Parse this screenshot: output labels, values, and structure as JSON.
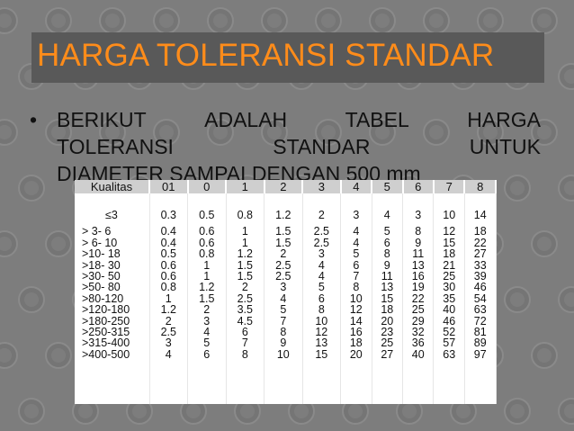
{
  "slide": {
    "title": "HARGA TOLERANSI STANDAR",
    "bullet_symbol": "•",
    "bullet_lines": [
      [
        "BERIKUT",
        "ADALAH",
        "TABEL",
        "HARGA"
      ],
      [
        "TOLERANSI",
        "STANDAR",
        "UNTUK"
      ],
      [
        "DIAMETER SAMPAI DENGAN 500 mm"
      ]
    ]
  },
  "table": {
    "headers": [
      "Kualitas",
      "01",
      "0",
      "1",
      "2",
      "3",
      "4",
      "5",
      "6",
      "7",
      "8"
    ],
    "columns": [
      [
        "≤3",
        "> 3- 6",
        "> 6- 10",
        ">10- 18",
        ">18- 30",
        ">30- 50",
        ">50- 80",
        ">80-120",
        ">120-180",
        ">180-250",
        ">250-315",
        ">315-400",
        ">400-500"
      ],
      [
        "0.3",
        "0.4",
        "0.4",
        "0.5",
        "0.6",
        "0.6",
        "0.8",
        "1",
        "1.2",
        "2",
        "2.5",
        "3",
        "4"
      ],
      [
        "0.5",
        "0.6",
        "0.6",
        "0.8",
        "1",
        "1",
        "1.2",
        "1.5",
        "2",
        "3",
        "4",
        "5",
        "6"
      ],
      [
        "0.8",
        "1",
        "1",
        "1.2",
        "1.5",
        "1.5",
        "2",
        "2.5",
        "3.5",
        "4.5",
        "6",
        "7",
        "8"
      ],
      [
        "1.2",
        "1.5",
        "1.5",
        "2",
        "2.5",
        "2.5",
        "3",
        "4",
        "5",
        "7",
        "8",
        "9",
        "10"
      ],
      [
        "2",
        "2.5",
        "2.5",
        "3",
        "4",
        "4",
        "5",
        "6",
        "8",
        "10",
        "12",
        "13",
        "15"
      ],
      [
        "3",
        "4",
        "4",
        "5",
        "6",
        "7",
        "8",
        "10",
        "12",
        "14",
        "16",
        "18",
        "20"
      ],
      [
        "4",
        "5",
        "6",
        "8",
        "9",
        "11",
        "13",
        "15",
        "18",
        "20",
        "23",
        "25",
        "27"
      ],
      [
        "3",
        "8",
        "9",
        "11",
        "13",
        "16",
        "19",
        "22",
        "25",
        "29",
        "32",
        "36",
        "40"
      ],
      [
        "10",
        "12",
        "15",
        "18",
        "21",
        "25",
        "30",
        "35",
        "40",
        "46",
        "52",
        "57",
        "63"
      ],
      [
        "14",
        "18",
        "22",
        "27",
        "33",
        "39",
        "46",
        "54",
        "63",
        "72",
        "81",
        "89",
        "97"
      ]
    ]
  }
}
